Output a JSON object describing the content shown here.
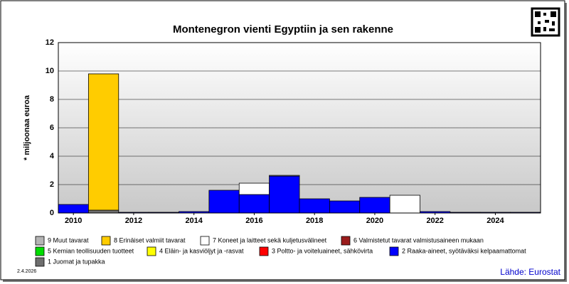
{
  "chart_data": {
    "type": "stacked_bar",
    "title": "Montenegron vienti Egyptiin ja sen rakenne",
    "y_label": "* miljoonaa euroa",
    "date": "2.4.2026",
    "source": "Lähde: Eurostat",
    "x": [
      2010,
      2011,
      2012,
      2013,
      2014,
      2015,
      2016,
      2017,
      2018,
      2019,
      2020,
      2021,
      2022,
      2023,
      2024,
      2025
    ],
    "xlim": [
      2009.5,
      2025.5
    ],
    "xticks": [
      2010,
      2012,
      2014,
      2016,
      2018,
      2020,
      2022,
      2024
    ],
    "ylim": [
      0,
      12
    ],
    "yticks": [
      0,
      2,
      4,
      6,
      8,
      10,
      12
    ],
    "grid": true,
    "legend": "bottom",
    "series": [
      {
        "name": "9 Muut tavarat",
        "color": "#b4b4b4",
        "values": [
          0,
          0,
          0,
          0,
          0,
          0,
          0,
          0,
          0,
          0,
          0,
          0,
          0,
          0,
          0,
          0
        ]
      },
      {
        "name": "8 Erinäiset valmiit tavarat",
        "color": "#ffcc00",
        "values": [
          0,
          9.6,
          0,
          0,
          0,
          0,
          0,
          0,
          0,
          0,
          0,
          0,
          0,
          0,
          0,
          0
        ]
      },
      {
        "name": "7 Koneet ja laitteet sekä kuljetusvälineet",
        "color": "#ffffff",
        "values": [
          0,
          0,
          0,
          0,
          0,
          0,
          0.8,
          0.05,
          0,
          0,
          0,
          1.25,
          0,
          0,
          0,
          0
        ]
      },
      {
        "name": "6 Valmistetut tavarat valmistusaineen mukaan",
        "color": "#9b1c1c",
        "values": [
          0,
          0,
          0,
          0,
          0,
          0,
          0,
          0,
          0,
          0,
          0,
          0,
          0,
          0,
          0,
          0
        ]
      },
      {
        "name": "5 Kemian teollisuuden tuotteet",
        "color": "#00dd00",
        "values": [
          0,
          0,
          0,
          0,
          0,
          0,
          0,
          0,
          0,
          0,
          0,
          0,
          0,
          0,
          0,
          0
        ]
      },
      {
        "name": "4 Eläin- ja kasviöljyt ja -rasvat",
        "color": "#ffff00",
        "values": [
          0,
          0,
          0,
          0,
          0,
          0,
          0,
          0,
          0,
          0,
          0,
          0,
          0,
          0,
          0,
          0
        ]
      },
      {
        "name": "3 Poltto- ja voiteluaineet, sähkövirta",
        "color": "#ff0000",
        "values": [
          0,
          0,
          0,
          0,
          0,
          0,
          0,
          0,
          0,
          0,
          0,
          0,
          0,
          0,
          0,
          0
        ]
      },
      {
        "name": "2 Raaka-aineet, syötäväksi kelpaamattomat",
        "color": "#0000ff",
        "values": [
          0.6,
          0,
          0.05,
          0.05,
          0.1,
          1.6,
          1.3,
          2.6,
          1.0,
          0.85,
          1.1,
          0,
          0.1,
          0.05,
          0.05,
          0.05
        ]
      },
      {
        "name": "1 Juomat ja tupakka",
        "color": "#6e6e6e",
        "values": [
          0,
          0.2,
          0,
          0,
          0,
          0,
          0,
          0,
          0,
          0,
          0,
          0,
          0,
          0,
          0,
          0
        ]
      }
    ]
  }
}
